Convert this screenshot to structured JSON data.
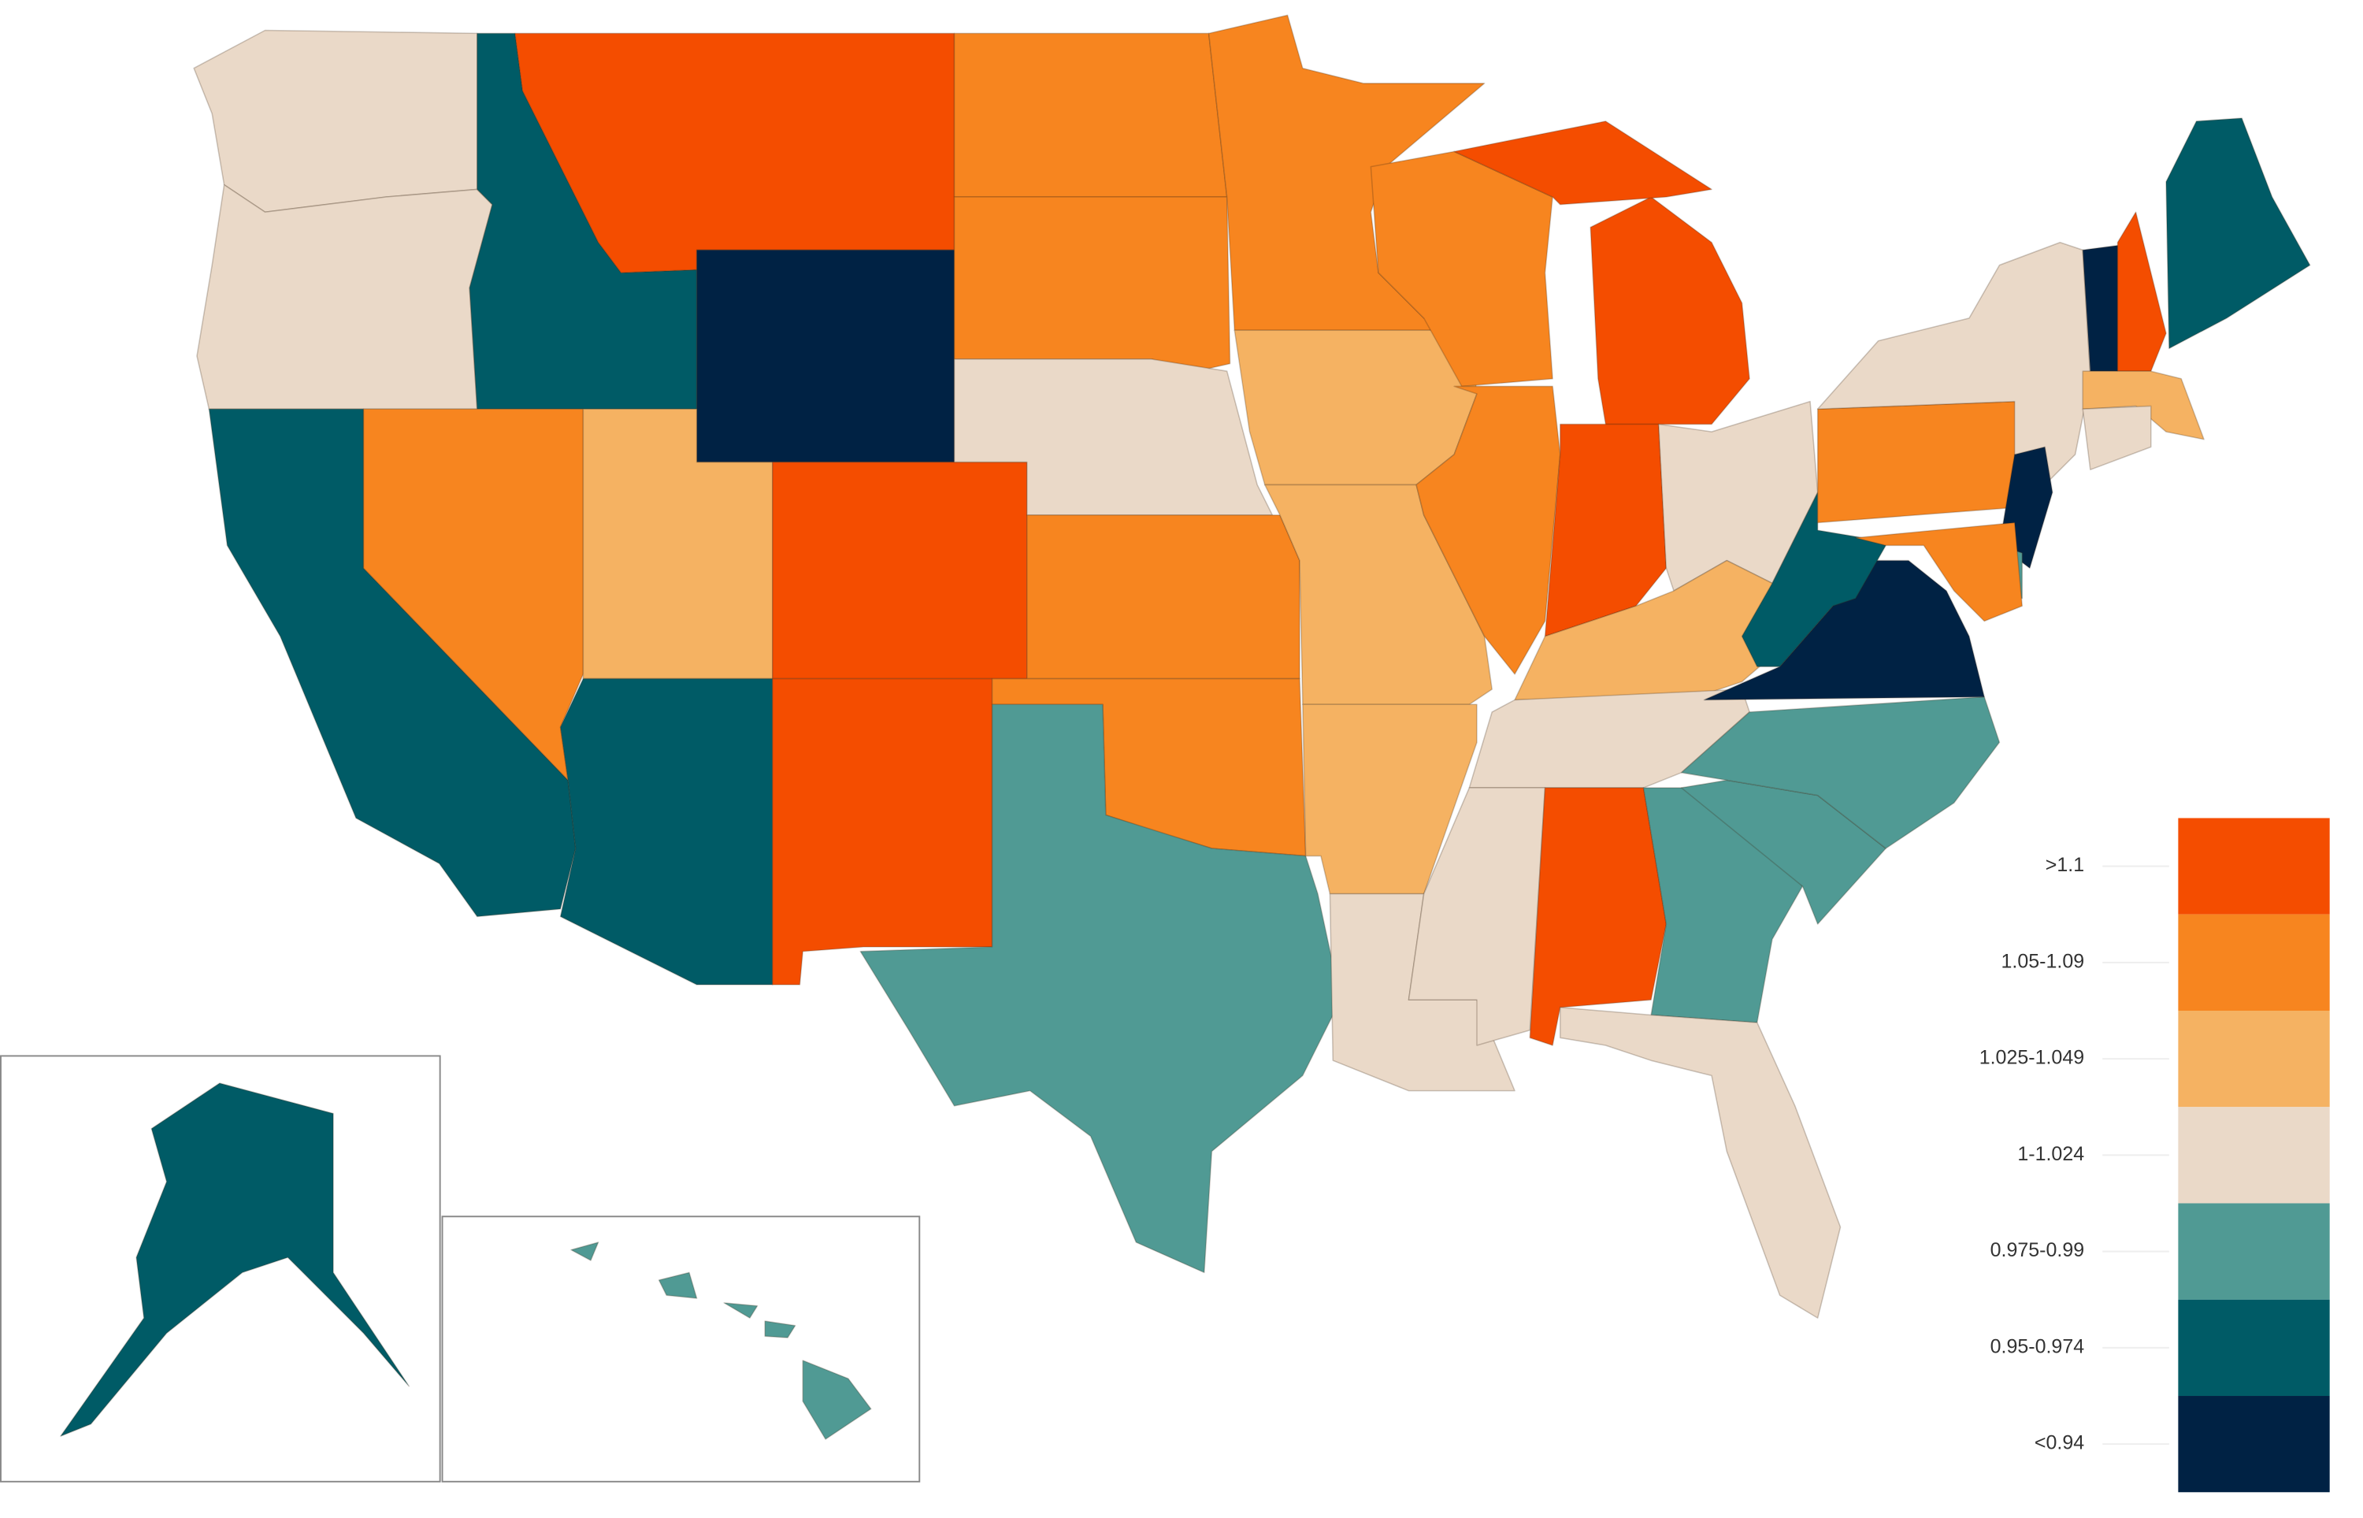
{
  "legend": [
    {
      "label": ">1.1",
      "color": "#f44d00"
    },
    {
      "label": "1.05-1.09",
      "color": "#f7851f"
    },
    {
      "label": "1.025-1.049",
      "color": "#f5b262"
    },
    {
      "label": "1-1.024",
      "color": "#ead9c8"
    },
    {
      "label": "0.975-0.99",
      "color": "#509a94"
    },
    {
      "label": "0.95-0.974",
      "color": "#005b66"
    },
    {
      "label": "<0.94",
      "color": "#002244"
    }
  ]
}
